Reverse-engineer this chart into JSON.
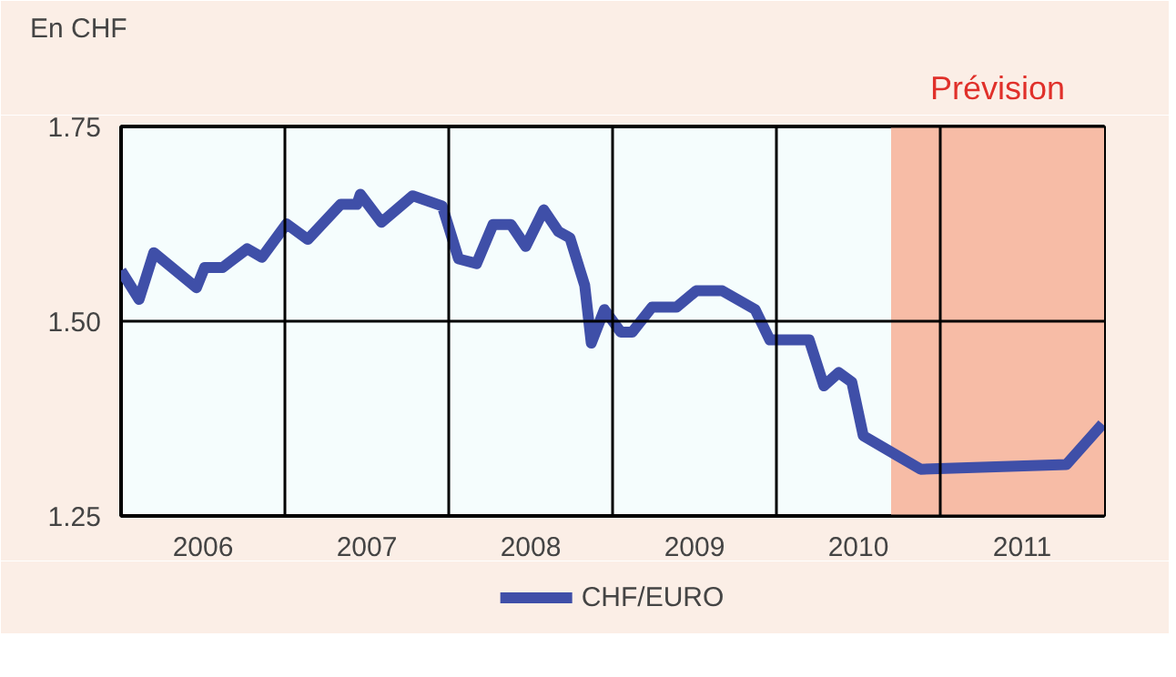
{
  "chart_data": {
    "type": "line",
    "title": "En CHF",
    "x": [
      2006.0,
      2006.11,
      2006.2,
      2006.46,
      2006.51,
      2006.62,
      2006.77,
      2006.86,
      2007.01,
      2007.14,
      2007.34,
      2007.44,
      2007.46,
      2007.59,
      2007.78,
      2007.96,
      2008.06,
      2008.17,
      2008.27,
      2008.38,
      2008.47,
      2008.58,
      2008.67,
      2008.74,
      2008.83,
      2008.87,
      2008.95,
      2009.05,
      2009.12,
      2009.24,
      2009.39,
      2009.51,
      2009.67,
      2009.87,
      2009.96,
      2010.2,
      2010.29,
      2010.38,
      2010.46,
      2010.53,
      2010.88,
      2011.77,
      2011.99
    ],
    "series": [
      {
        "name": "CHF/EURO",
        "color": "#3f4fa8",
        "values": [
          1.565,
          1.528,
          1.588,
          1.543,
          1.569,
          1.569,
          1.593,
          1.582,
          1.625,
          1.605,
          1.65,
          1.65,
          1.663,
          1.627,
          1.661,
          1.648,
          1.58,
          1.574,
          1.624,
          1.624,
          1.596,
          1.643,
          1.615,
          1.607,
          1.546,
          1.472,
          1.515,
          1.486,
          1.486,
          1.518,
          1.518,
          1.539,
          1.539,
          1.515,
          1.476,
          1.476,
          1.417,
          1.434,
          1.422,
          1.353,
          1.31,
          1.316,
          1.368
        ]
      }
    ],
    "xlim": [
      2006,
      2012
    ],
    "ylim": [
      1.25,
      1.75
    ],
    "xticks": [
      {
        "value": 2006.5,
        "label": "2006"
      },
      {
        "value": 2007,
        "label": null
      },
      {
        "value": 2007.5,
        "label": "2007"
      },
      {
        "value": 2008,
        "label": null
      },
      {
        "value": 2008.5,
        "label": "2008"
      },
      {
        "value": 2009,
        "label": null
      },
      {
        "value": 2009.5,
        "label": "2009"
      },
      {
        "value": 2010,
        "label": null
      },
      {
        "value": 2010.5,
        "label": "2010"
      },
      {
        "value": 2011,
        "label": null
      },
      {
        "value": 2011.5,
        "label": "2011"
      }
    ],
    "yticks": [
      1.25,
      {
        "value": 1.5,
        "label": "1.50"
      },
      1.75
    ],
    "bands": [
      {
        "axis": "x",
        "from": 2010.7,
        "to": 2012,
        "label": "Prévision",
        "color": "#f7bca6"
      }
    ],
    "grid": true,
    "legend": "bottom",
    "marker": "none",
    "line_style": "solid"
  }
}
